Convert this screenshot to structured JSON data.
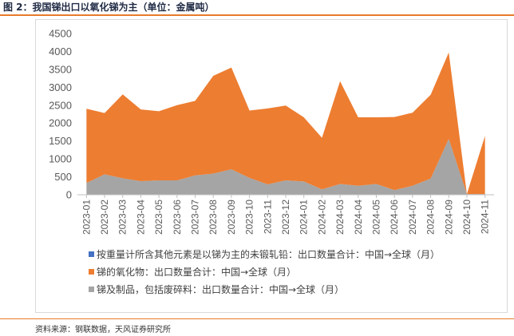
{
  "header": {
    "title": "图 2：我国锑出口以氧化锑为主（单位：金属吨）"
  },
  "footer": {
    "source": "资料来源：钢联数据，天风证券研究所"
  },
  "chart_data": {
    "type": "area",
    "stacked": true,
    "grid": false,
    "legend_position": "bottom",
    "ylim": [
      0,
      4500
    ],
    "yticks": [
      0,
      500,
      1000,
      1500,
      2000,
      2500,
      3000,
      3500,
      4000,
      4500
    ],
    "categories": [
      "2023-01",
      "2023-02",
      "2023-03",
      "2023-04",
      "2023-05",
      "2023-06",
      "2023-07",
      "2023-08",
      "2023-09",
      "2023-10",
      "2023-11",
      "2023-12",
      "2024-01",
      "2024-02",
      "2024-03",
      "2024-04",
      "2024-05",
      "2024-06",
      "2024-07",
      "2024-08",
      "2024-09",
      "2024-10",
      "2024-11"
    ],
    "series": [
      {
        "name": "锑及制品，包括废碎料：出口数量合计：中国→全球（月）",
        "color": "#a5a5a5",
        "values": [
          330,
          570,
          460,
          380,
          400,
          400,
          540,
          590,
          710,
          470,
          290,
          400,
          370,
          150,
          300,
          250,
          300,
          130,
          250,
          450,
          1560,
          20,
          20
        ]
      },
      {
        "name": "锑的氧化物：出口数量合计：中国→全球（月）",
        "color": "#ed7d31",
        "values": [
          2070,
          1710,
          2340,
          2000,
          1930,
          2100,
          2080,
          2730,
          2840,
          1880,
          2120,
          2090,
          1790,
          1440,
          2870,
          1910,
          1860,
          2040,
          2040,
          2340,
          2410,
          0,
          1620
        ]
      },
      {
        "name": "按重量计所含其他元素是以锑为主的未锻轧铅：出口数量合计：中国→全球（月）",
        "color": "#4472c4",
        "values": [
          0,
          0,
          0,
          0,
          0,
          0,
          0,
          0,
          0,
          0,
          0,
          0,
          0,
          0,
          0,
          0,
          0,
          0,
          0,
          0,
          0,
          0,
          0
        ]
      }
    ],
    "legend_order": [
      2,
      1,
      0
    ]
  }
}
